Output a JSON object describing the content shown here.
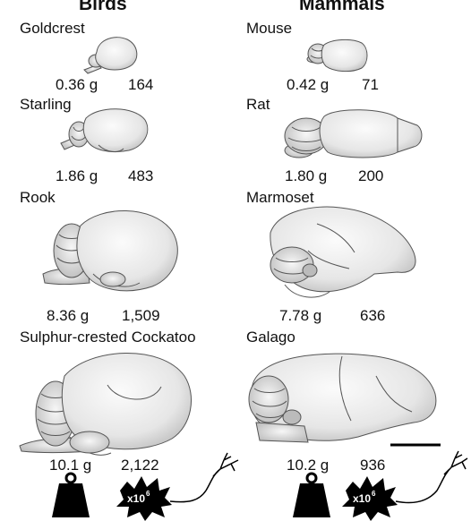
{
  "columns": {
    "birds": "Birds",
    "mammals": "Mammals"
  },
  "birds": [
    {
      "name": "Goldcrest",
      "mass": "0.36 g",
      "count": "164"
    },
    {
      "name": "Starling",
      "mass": "1.86 g",
      "count": "483"
    },
    {
      "name": "Rook",
      "mass": "8.36 g",
      "count": "1,509"
    },
    {
      "name": "Sulphur-crested Cockatoo",
      "mass": "10.1 g",
      "count": "2,122"
    }
  ],
  "mammals": [
    {
      "name": "Mouse",
      "mass": "0.42 g",
      "count": "71"
    },
    {
      "name": "Rat",
      "mass": "1.80 g",
      "count": "200"
    },
    {
      "name": "Marmoset",
      "mass": "7.78 g",
      "count": "636"
    },
    {
      "name": "Galago",
      "mass": "10.2 g",
      "count": "936"
    }
  ],
  "legend": {
    "multiplier_base": "x10",
    "multiplier_exp": "6",
    "weight_icon": "weight-icon",
    "neuron_icon": "neuron-icon"
  },
  "colors": {
    "ink": "#111111",
    "brain_fill": "#eeeeee",
    "brain_shade": "#cfcfcf"
  }
}
